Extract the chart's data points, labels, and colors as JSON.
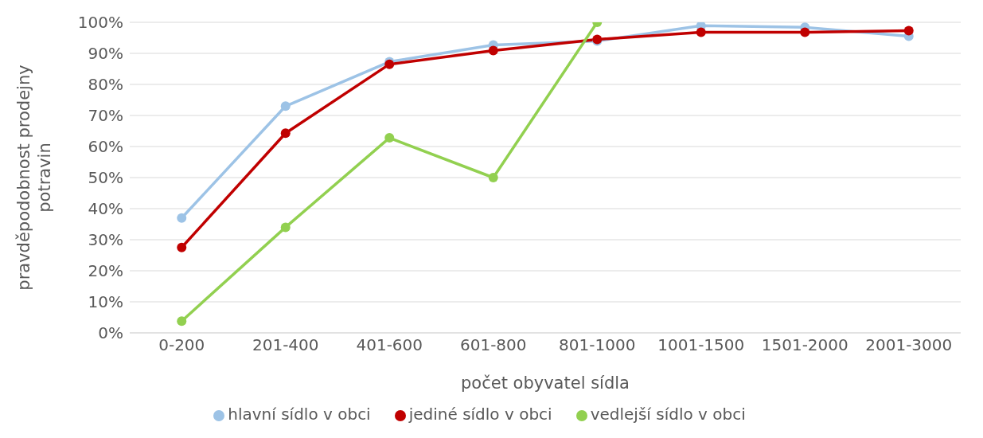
{
  "chart_data": {
    "type": "line",
    "xlabel": "počet obyvatel sídla",
    "ylabel": "pravděpodobnost prodejny potravin",
    "categories": [
      "0-200",
      "201-400",
      "401-600",
      "601-800",
      "801-1000",
      "1001-1500",
      "1501-2000",
      "2001-3000"
    ],
    "series": [
      {
        "name": "hlavní sídlo v obci",
        "color": "#9dc3e6",
        "values": [
          37,
          73,
          87.3,
          92.7,
          94,
          98.9,
          98.4,
          95.5
        ]
      },
      {
        "name": "jediné sídlo v obci",
        "color": "#c00000",
        "values": [
          27.5,
          64.3,
          86.5,
          90.9,
          94.5,
          96.8,
          96.8,
          97.3
        ]
      },
      {
        "name": "vedlejší sídlo v obci",
        "color": "#92d050",
        "values": [
          3.8,
          34,
          62.8,
          50,
          100,
          null,
          null,
          null
        ]
      }
    ],
    "ylim": [
      0,
      100
    ],
    "yticks": [
      {
        "value": 0,
        "label": "0%"
      },
      {
        "value": 10,
        "label": "10%"
      },
      {
        "value": 20,
        "label": "20%"
      },
      {
        "value": 30,
        "label": "30%"
      },
      {
        "value": 40,
        "label": "40%"
      },
      {
        "value": 50,
        "label": "50%"
      },
      {
        "value": 60,
        "label": "60%"
      },
      {
        "value": 70,
        "label": "70%"
      },
      {
        "value": 80,
        "label": "80%"
      },
      {
        "value": 90,
        "label": "90%"
      },
      {
        "value": 100,
        "label": "100%"
      }
    ],
    "grid": "y",
    "legend": "bottom",
    "marker": "circle",
    "line_style": "solid"
  }
}
